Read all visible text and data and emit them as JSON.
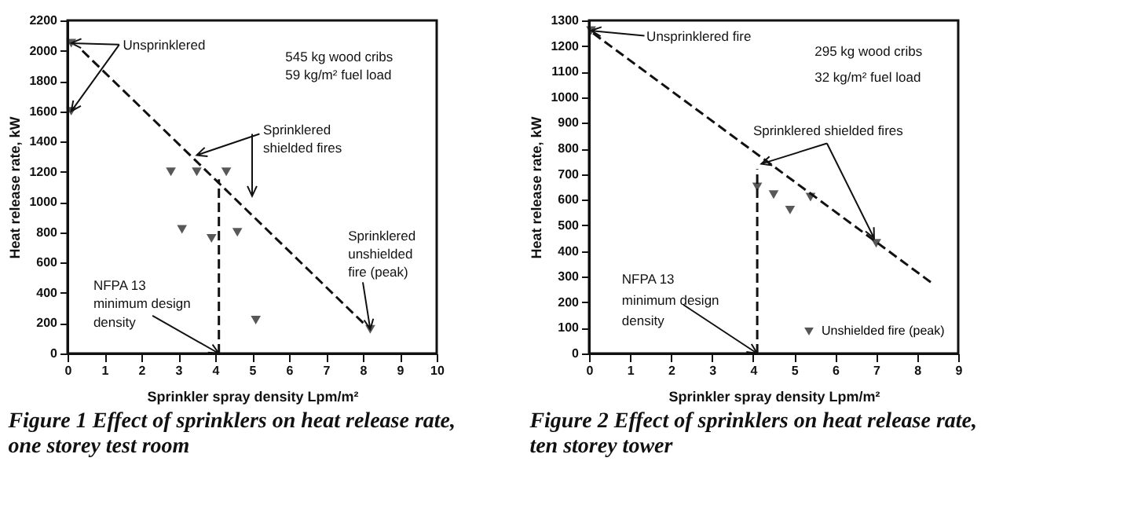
{
  "chart_data": [
    {
      "type": "scatter",
      "title": "Figure 1 Effect of sprinklers on heat release rate, one storey test room",
      "xlabel": "Sprinkler spray density Lpm/m²",
      "ylabel": "Heat release rate, kW",
      "xlim": [
        0,
        10
      ],
      "xticks": [
        0,
        1,
        2,
        3,
        4,
        5,
        6,
        7,
        8,
        9,
        10
      ],
      "ylim": [
        0,
        2200
      ],
      "yticks": [
        0,
        200,
        400,
        600,
        800,
        1000,
        1200,
        1400,
        1600,
        1800,
        2000,
        2200
      ],
      "grid": false,
      "legend": false,
      "series": [
        {
          "type": "scatter",
          "color": "#111111",
          "marker": "triangle",
          "x": [
            0.1,
            0.1,
            2.8,
            3.5,
            4.3,
            3.1,
            3.9,
            4.6,
            5.1,
            8.2
          ],
          "values": [
            2050,
            1600,
            1200,
            1200,
            1200,
            820,
            760,
            800,
            220,
            160
          ]
        },
        {
          "type": "line",
          "color": "#111111",
          "line_style": "dashed",
          "x": [
            0.4,
            8.1
          ],
          "values": [
            2000,
            180
          ]
        },
        {
          "type": "line",
          "color": "#111111",
          "line_style": "dashed",
          "x": [
            4.1,
            4.1
          ],
          "values": [
            0,
            1150
          ]
        }
      ],
      "annotations": [
        {
          "text": "Unsprinklered",
          "x": 0.1,
          "y": 2050
        },
        "545 kg wood cribs",
        "59 kg/m² fuel load",
        {
          "text": "Sprinklered",
          "x": 3.5,
          "y": 1310
        },
        "shielded fires",
        "Sprinklered",
        "unshielded",
        {
          "text": "fire (peak)",
          "x": 8.2,
          "y": 160
        },
        "NFPA 13",
        {
          "text": "minimum design",
          "x": 4.1,
          "y": 0
        },
        "density"
      ]
    },
    {
      "type": "scatter",
      "title": "Figure 2 Effect of sprinklers on heat release rate, ten storey tower",
      "xlabel": "Sprinkler spray density Lpm/m²",
      "ylabel": "Heat release rate, kW",
      "xlim": [
        0,
        9
      ],
      "xticks": [
        0,
        1,
        2,
        3,
        4,
        5,
        6,
        7,
        8,
        9
      ],
      "ylim": [
        0,
        1300
      ],
      "yticks": [
        0,
        100,
        200,
        300,
        400,
        500,
        600,
        700,
        800,
        900,
        1000,
        1100,
        1200,
        1300
      ],
      "grid": false,
      "legend": "bottom right",
      "series": [
        {
          "type": "scatter",
          "name": "Unshielded fire (peak)",
          "color": "#111111",
          "marker": "triangle",
          "x": [
            0.05,
            4.1,
            4.5,
            4.9,
            5.4,
            7.0
          ],
          "values": [
            1260,
            650,
            620,
            560,
            610,
            430
          ]
        },
        {
          "type": "line",
          "color": "#111111",
          "line_style": "dashed",
          "x": [
            0.1,
            8.4
          ],
          "values": [
            1250,
            270
          ]
        },
        {
          "type": "line",
          "color": "#111111",
          "line_style": "dashed",
          "x": [
            4.1,
            4.1
          ],
          "values": [
            0,
            720
          ]
        }
      ],
      "annotations": [
        {
          "text": "Unsprinklered fire",
          "x": 0.05,
          "y": 1260
        },
        "295 kg wood cribs",
        "32 kg/m² fuel load",
        {
          "text": "Sprinklered shielded fires",
          "x": 4.2,
          "y": 740
        },
        "NFPA 13",
        {
          "text": "minimum design",
          "x": 4.1,
          "y": 0
        },
        "density"
      ]
    }
  ]
}
